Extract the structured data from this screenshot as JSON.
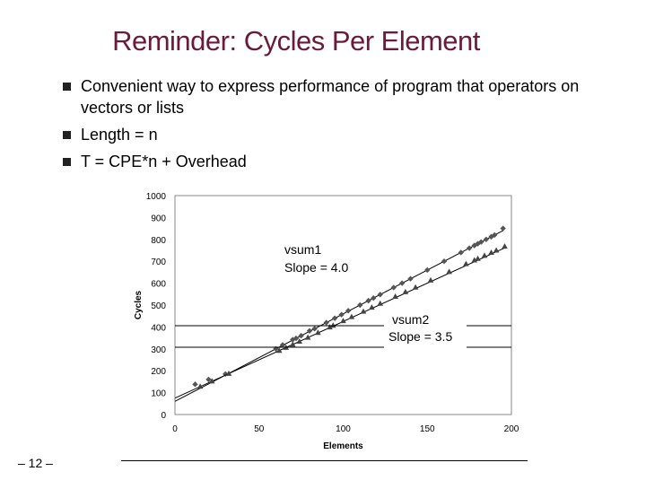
{
  "slide": {
    "title": "Reminder: Cycles Per Element",
    "bullets": [
      "Convenient way to express performance of program that operators on vectors or lists",
      "Length = n",
      "T = CPE*n + Overhead"
    ],
    "page_number": "– 12 –"
  },
  "chart_data": {
    "type": "scatter",
    "title": "",
    "xlabel": "Elements",
    "ylabel": "Cycles",
    "xlim": [
      0,
      200
    ],
    "ylim": [
      0,
      1000
    ],
    "xticks": [
      0,
      50,
      100,
      150,
      200
    ],
    "yticks": [
      0,
      100,
      200,
      300,
      400,
      500,
      600,
      700,
      800,
      900,
      1000
    ],
    "grid": false,
    "series": [
      {
        "name": "vsum1",
        "marker": "diamond",
        "color": "#555555",
        "slope": 4.0,
        "intercept": 60,
        "x": [
          12,
          20,
          30,
          60,
          64,
          70,
          72,
          75,
          80,
          83,
          90,
          95,
          99,
          103,
          110,
          115,
          118,
          122,
          130,
          135,
          140,
          150,
          160,
          170,
          175,
          178,
          180,
          182,
          185,
          188,
          190,
          195
        ],
        "y": [
          138,
          160,
          185,
          300,
          318,
          342,
          348,
          360,
          382,
          392,
          420,
          440,
          456,
          474,
          500,
          520,
          532,
          548,
          580,
          600,
          620,
          660,
          700,
          740,
          760,
          772,
          780,
          788,
          800,
          812,
          820,
          850
        ]
      },
      {
        "name": "vsum2",
        "marker": "triangle",
        "color": "#444444",
        "slope": 3.5,
        "intercept": 75,
        "x": [
          15,
          22,
          32,
          62,
          66,
          70,
          74,
          79,
          85,
          92,
          94,
          100,
          105,
          112,
          117,
          122,
          131,
          137,
          143,
          152,
          163,
          173,
          178,
          180,
          184,
          188,
          191,
          196
        ],
        "y": [
          128,
          152,
          187,
          292,
          306,
          320,
          334,
          352,
          374,
          399,
          407,
          428,
          446,
          471,
          489,
          507,
          539,
          560,
          581,
          613,
          652,
          688,
          705,
          712,
          726,
          740,
          750,
          768
        ]
      }
    ],
    "annotations": [
      {
        "series": "vsum1",
        "name": "vsum1",
        "label": "Slope = 4.0"
      },
      {
        "series": "vsum2",
        "name": "vsum2",
        "label": "Slope = 3.5"
      }
    ]
  }
}
